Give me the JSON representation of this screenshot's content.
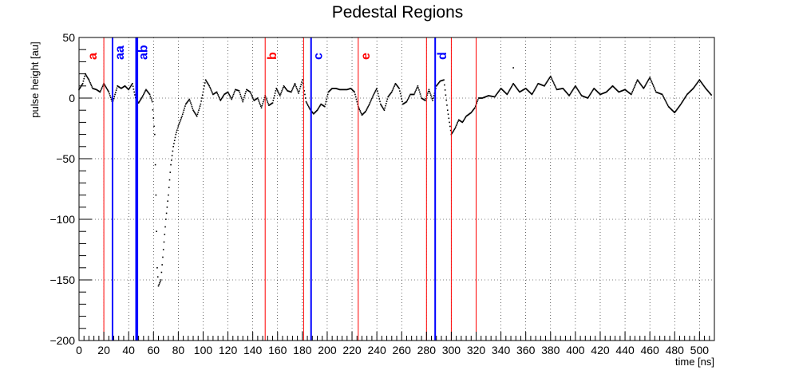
{
  "chart_data": {
    "type": "scatter",
    "title": "Pedestal Regions",
    "xlabel": "time [ns]",
    "ylabel": "pulse height [au]",
    "xlim": [
      0,
      512
    ],
    "ylim": [
      -200,
      50
    ],
    "x_ticks": [
      0,
      20,
      40,
      60,
      80,
      100,
      120,
      140,
      160,
      180,
      200,
      220,
      240,
      260,
      280,
      300,
      320,
      340,
      360,
      380,
      400,
      420,
      440,
      460,
      480,
      500
    ],
    "y_ticks": [
      50,
      0,
      -50,
      -100,
      -150,
      -200
    ],
    "grid": true,
    "colors": {
      "red": "#ff0000",
      "blue": "#0000ff",
      "points": "#000000"
    },
    "regions": [
      {
        "label": "a",
        "color": "#ff0000",
        "lines": [
          0,
          20
        ]
      },
      {
        "label": "aa",
        "color": "#0000ff",
        "lines": [
          27,
          47
        ]
      },
      {
        "label": "ab",
        "color": "#0000ff",
        "lines": [
          46
        ]
      },
      {
        "label": "b",
        "color": "#ff0000",
        "lines": [
          150,
          181
        ]
      },
      {
        "label": "c",
        "color": "#0000ff",
        "lines": [
          187
        ]
      },
      {
        "label": "e",
        "color": "#ff0000",
        "lines": [
          225,
          280
        ]
      },
      {
        "label": "d",
        "color": "#0000ff",
        "lines": [
          287
        ]
      },
      {
        "label": "",
        "color": "#ff0000",
        "lines": [
          300,
          320
        ]
      }
    ],
    "series": [
      {
        "keypoints": [
          [
            0,
            7
          ],
          [
            3,
            12
          ],
          [
            5,
            20
          ],
          [
            8,
            15
          ],
          [
            11,
            8
          ],
          [
            14,
            7
          ],
          [
            17,
            5
          ],
          [
            20,
            12
          ],
          [
            24,
            5
          ],
          [
            27,
            -4
          ],
          [
            31,
            10
          ],
          [
            34,
            8
          ],
          [
            37,
            10
          ],
          [
            40,
            7
          ],
          [
            43,
            12
          ],
          [
            46,
            -2
          ],
          [
            48,
            -4
          ],
          [
            51,
            1
          ],
          [
            54,
            7
          ],
          [
            57,
            3
          ],
          [
            59,
            -3
          ],
          [
            61,
            -30
          ],
          [
            62,
            -80
          ],
          [
            63,
            -140
          ],
          [
            64,
            -155
          ],
          [
            66,
            -150
          ],
          [
            68,
            -125
          ],
          [
            70,
            -100
          ],
          [
            72,
            -80
          ],
          [
            74,
            -55
          ],
          [
            76,
            -40
          ],
          [
            78,
            -30
          ],
          [
            80,
            -23
          ],
          [
            83,
            -15
          ],
          [
            86,
            -5
          ],
          [
            89,
            -1
          ],
          [
            92,
            -10
          ],
          [
            95,
            -15
          ],
          [
            98,
            -5
          ],
          [
            100,
            5
          ],
          [
            102,
            15
          ],
          [
            105,
            10
          ],
          [
            108,
            3
          ],
          [
            111,
            5
          ],
          [
            114,
            -2
          ],
          [
            117,
            3
          ],
          [
            120,
            5
          ],
          [
            123,
            -1
          ],
          [
            126,
            7
          ],
          [
            129,
            6
          ],
          [
            132,
            -3
          ],
          [
            135,
            7
          ],
          [
            138,
            5
          ],
          [
            141,
            -2
          ],
          [
            144,
            0
          ],
          [
            147,
            -8
          ],
          [
            150,
            2
          ],
          [
            153,
            -6
          ],
          [
            156,
            -4
          ],
          [
            159,
            8
          ],
          [
            162,
            2
          ],
          [
            165,
            10
          ],
          [
            168,
            6
          ],
          [
            171,
            5
          ],
          [
            174,
            12
          ],
          [
            177,
            4
          ],
          [
            180,
            15
          ],
          [
            183,
            -3
          ],
          [
            186,
            -9
          ],
          [
            189,
            -13
          ],
          [
            192,
            -10
          ],
          [
            195,
            -5
          ],
          [
            198,
            -7
          ],
          [
            201,
            5
          ],
          [
            204,
            8
          ],
          [
            207,
            8
          ],
          [
            210,
            7
          ],
          [
            213,
            7
          ],
          [
            216,
            7
          ],
          [
            219,
            8
          ],
          [
            222,
            5
          ],
          [
            225,
            -7
          ],
          [
            228,
            -14
          ],
          [
            231,
            -11
          ],
          [
            234,
            -5
          ],
          [
            237,
            2
          ],
          [
            240,
            8
          ],
          [
            243,
            -5
          ],
          [
            246,
            -10
          ],
          [
            249,
            1
          ],
          [
            252,
            5
          ],
          [
            255,
            12
          ],
          [
            258,
            8
          ],
          [
            261,
            -5
          ],
          [
            264,
            -3
          ],
          [
            267,
            3
          ],
          [
            270,
            3
          ],
          [
            273,
            10
          ],
          [
            276,
            0
          ],
          [
            279,
            -2
          ],
          [
            282,
            7
          ],
          [
            285,
            -2
          ],
          [
            288,
            10
          ],
          [
            291,
            14
          ],
          [
            294,
            15
          ],
          [
            297,
            -10
          ],
          [
            300,
            -30
          ],
          [
            303,
            -25
          ],
          [
            306,
            -18
          ],
          [
            309,
            -20
          ],
          [
            312,
            -15
          ],
          [
            316,
            -12
          ],
          [
            319,
            -8
          ],
          [
            322,
            0
          ],
          [
            325,
            0
          ],
          [
            330,
            2
          ],
          [
            335,
            1
          ],
          [
            340,
            8
          ],
          [
            345,
            3
          ],
          [
            350,
            12
          ],
          [
            355,
            5
          ],
          [
            360,
            8
          ],
          [
            365,
            3
          ],
          [
            370,
            12
          ],
          [
            375,
            10
          ],
          [
            380,
            18
          ],
          [
            385,
            7
          ],
          [
            390,
            8
          ],
          [
            395,
            2
          ],
          [
            400,
            10
          ],
          [
            405,
            2
          ],
          [
            410,
            0
          ],
          [
            415,
            8
          ],
          [
            420,
            3
          ],
          [
            425,
            5
          ],
          [
            430,
            10
          ],
          [
            435,
            5
          ],
          [
            440,
            7
          ],
          [
            445,
            3
          ],
          [
            450,
            15
          ],
          [
            455,
            8
          ],
          [
            460,
            17
          ],
          [
            465,
            5
          ],
          [
            470,
            3
          ],
          [
            475,
            -7
          ],
          [
            480,
            -12
          ],
          [
            485,
            -5
          ],
          [
            490,
            3
          ],
          [
            495,
            8
          ],
          [
            500,
            15
          ],
          [
            505,
            8
          ],
          [
            510,
            2
          ]
        ],
        "isolated_points": [
          [
            350,
            25
          ]
        ]
      }
    ]
  }
}
